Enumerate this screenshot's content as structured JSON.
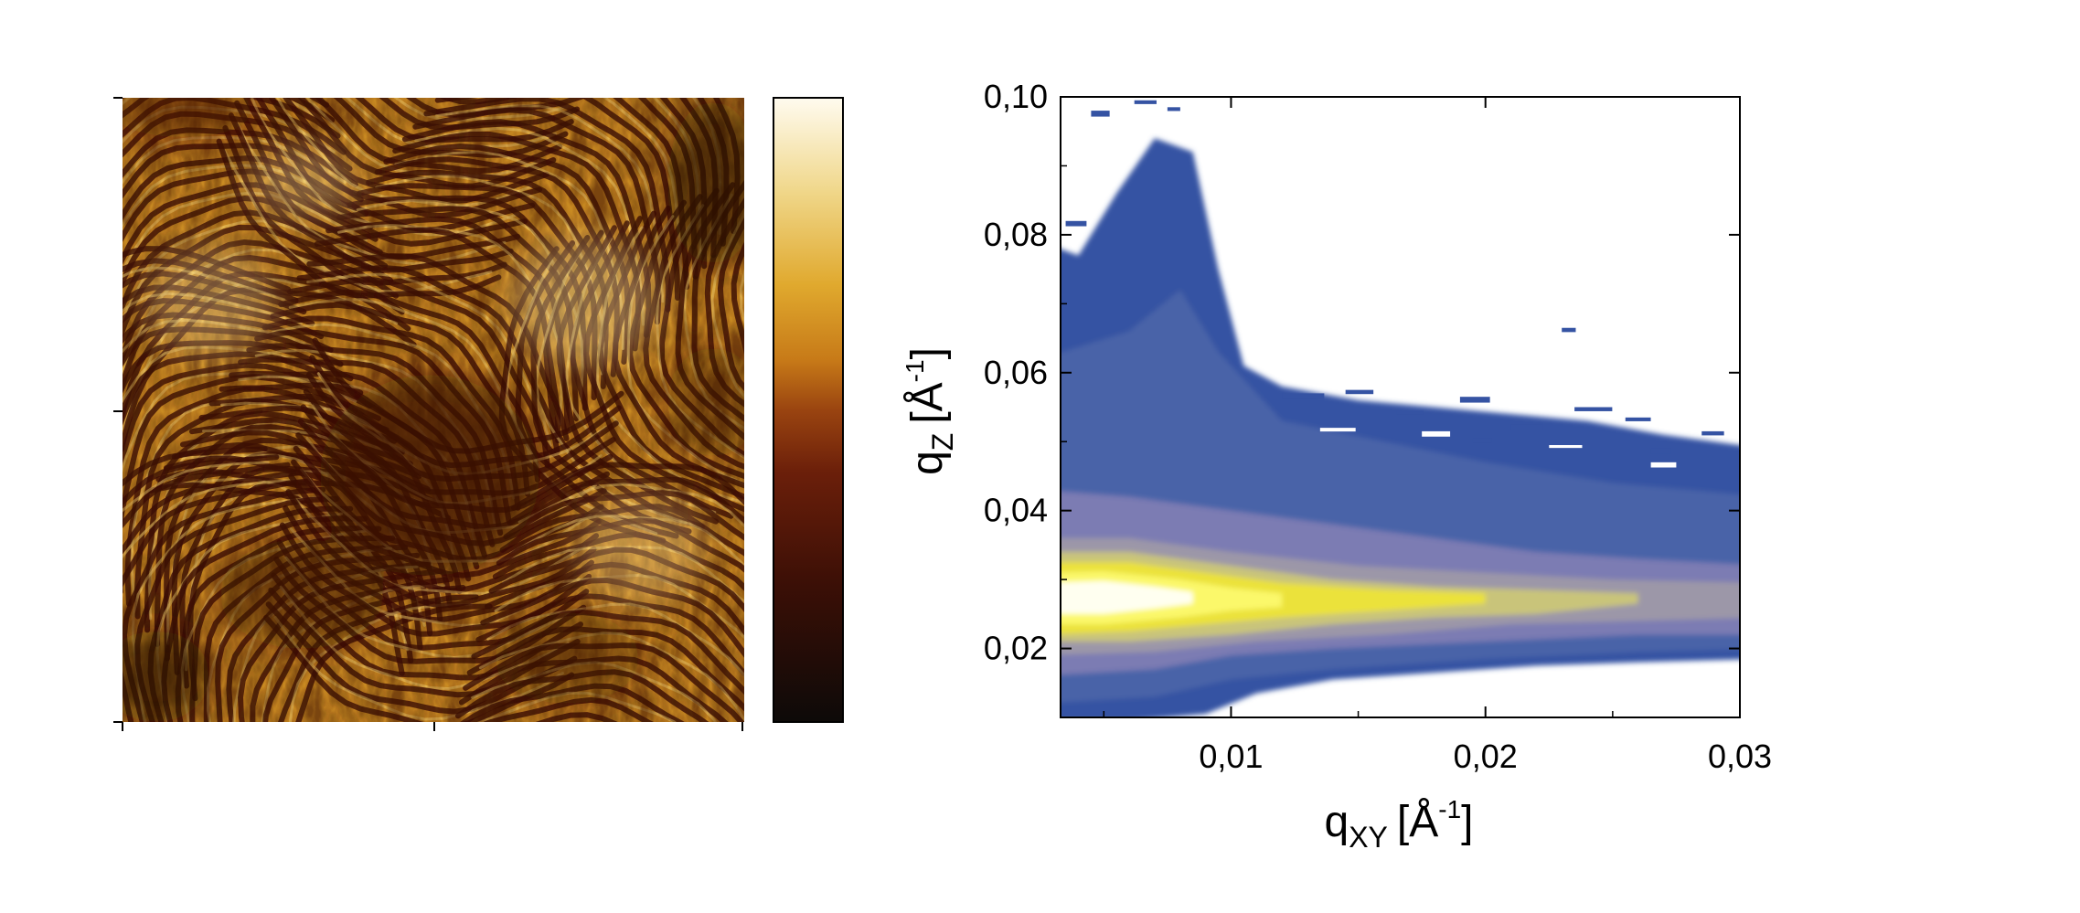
{
  "chart_data": [
    {
      "type": "heatmap",
      "subject": "microscopy-image",
      "colormap": [
        "#0d0a08",
        "#3b0f06",
        "#6b1f0a",
        "#9a4410",
        "#c77a18",
        "#e0a92e",
        "#f0d78a",
        "#fffbef"
      ],
      "x_ticks_shown": 3,
      "y_ticks_shown": 3,
      "colorbar": true
    },
    {
      "type": "heatmap",
      "style": "filled-contour",
      "xlabel_base": "q",
      "xlabel_sub": "XY",
      "xlabel_unit_open": "[Å",
      "xlabel_unit_sup": "-1",
      "xlabel_unit_close": "]",
      "ylabel_base": "q",
      "ylabel_sub": "Z",
      "ylabel_unit_open": "[Å",
      "ylabel_unit_sup": "-1",
      "ylabel_unit_close": "]",
      "xlim": [
        0.0033,
        0.03
      ],
      "ylim": [
        0.01,
        0.1
      ],
      "x_ticks": [
        0.01,
        0.02,
        0.03
      ],
      "x_tick_labels": [
        "0,01",
        "0,02",
        "0,03"
      ],
      "y_ticks": [
        0.02,
        0.04,
        0.06,
        0.08,
        0.1
      ],
      "y_tick_labels": [
        "0,02",
        "0,04",
        "0,06",
        "0,08",
        "0,10"
      ],
      "peak": {
        "qxy": 0.005,
        "qz": 0.027
      },
      "colors": [
        "#3553a3",
        "#4a63a8",
        "#7b7cb3",
        "#9c97a8",
        "#c9c47a",
        "#ebe23a",
        "#fbf86a",
        "#fffff0"
      ]
    }
  ]
}
